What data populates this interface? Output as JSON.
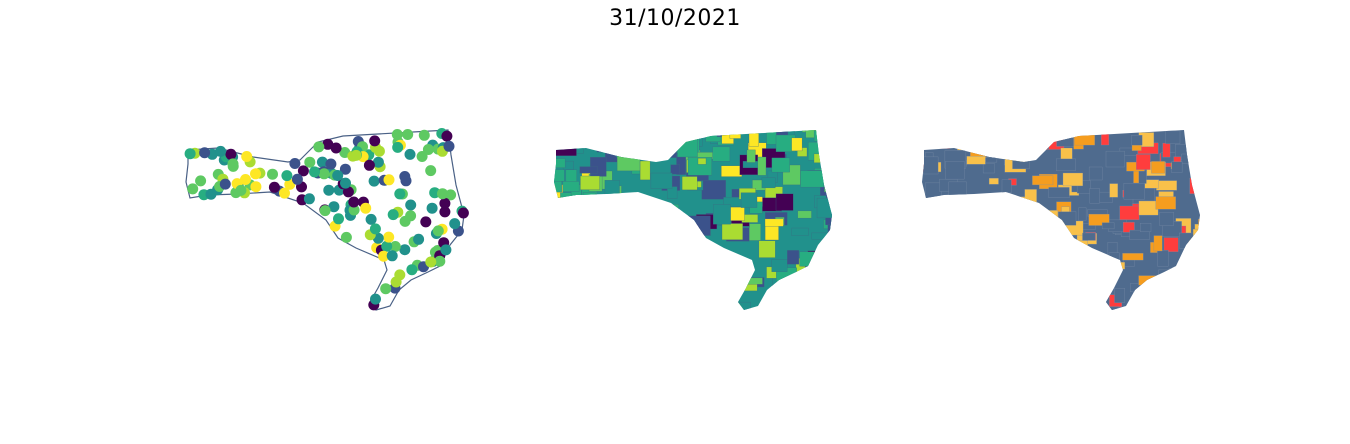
{
  "title": "31/10/2021",
  "colors": {
    "outline": "#4a6186",
    "viridis": [
      "#440154",
      "#3b528b",
      "#21918c",
      "#27ad81",
      "#5ec962",
      "#aadc32",
      "#fde725"
    ],
    "categorical": [
      "#4f6b8e",
      "#ff3d3d",
      "#f9c14a",
      "#f59d1f"
    ]
  },
  "panels": [
    {
      "kind": "point-map"
    },
    {
      "kind": "choropleth-map"
    },
    {
      "kind": "categorical-map"
    }
  ]
}
